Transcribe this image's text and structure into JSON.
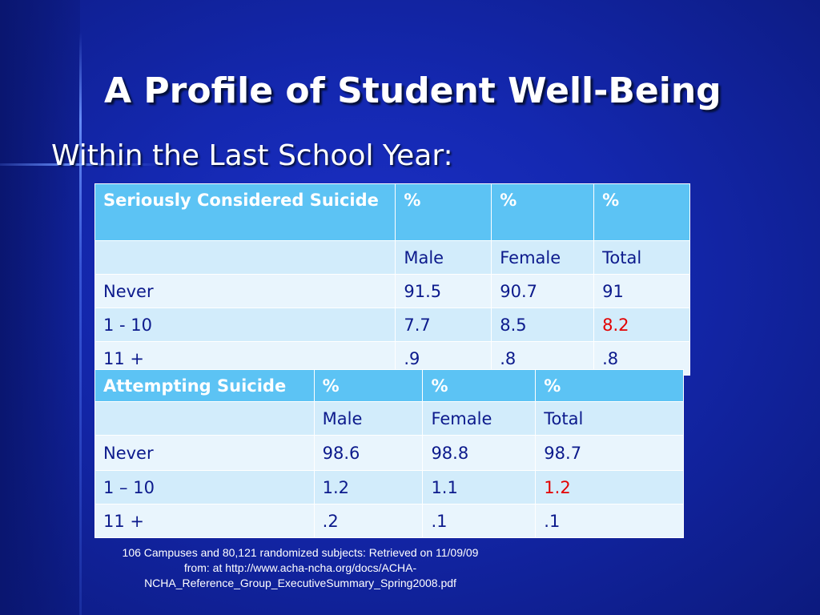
{
  "slide": {
    "title": "A Profile of Student Well-Being",
    "subtitle": "Within the Last School Year:"
  },
  "table1": {
    "header": [
      "Seriously  Considered Suicide",
      "%",
      "%",
      "%"
    ],
    "rows": [
      [
        "",
        "Male",
        "Female",
        "Total"
      ],
      [
        "Never",
        "91.5",
        "90.7",
        "91"
      ],
      [
        "1 - 10",
        "7.7",
        "8.5",
        "8.2"
      ],
      [
        "11 +",
        ".9",
        ".8",
        ".8"
      ]
    ]
  },
  "table2": {
    "header": [
      "Attempting Suicide",
      "%",
      "%",
      "%"
    ],
    "rows": [
      [
        "",
        "Male",
        "Female",
        "Total"
      ],
      [
        "Never",
        "98.6",
        "98.8",
        "98.7"
      ],
      [
        "1 – 10",
        "1.2",
        "1.1",
        "1.2"
      ],
      [
        "11 +",
        ".2",
        ".1",
        ".1"
      ]
    ]
  },
  "caption": "106 Campuses and 80,121 randomized subjects: Retrieved on 11/09/09 from: at http://www.acha-ncha.org/docs/ACHA-NCHA_Reference_Group_ExecutiveSummary_Spring2008.pdf",
  "colors": {
    "background": "#1428b0",
    "header_cell": "#5cc3f4",
    "cell_light": "#d2ecfb",
    "cell_pale": "#e9f5fd",
    "cell_text": "#0c1a8c",
    "highlight": "#e30000"
  }
}
